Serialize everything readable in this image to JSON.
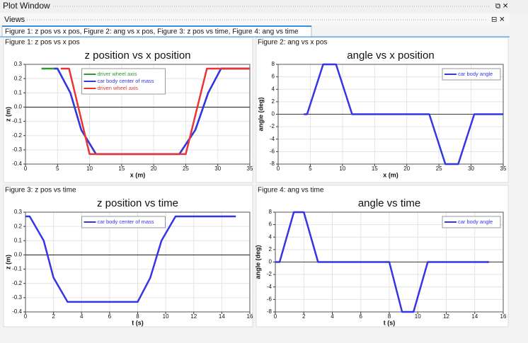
{
  "window": {
    "title": "Plot Window",
    "views": "Views",
    "tab": "Figure 1: z pos vs x pos, Figure 2: ang vs x pos, Figure 3: z pos vs time, Figure 4: ang vs time"
  },
  "chart_data": [
    {
      "type": "line",
      "figure_label": "Figure 1: z pos vs x pos",
      "title": "z position vs x position",
      "x_label": "x (m)",
      "y_label": "z (m)",
      "xlim": [
        0,
        35
      ],
      "xticks": [
        0,
        5,
        10,
        15,
        20,
        25,
        30,
        35
      ],
      "ylim": [
        -0.4,
        0.3
      ],
      "yticks": [
        -0.4,
        -0.3,
        -0.2,
        -0.1,
        {
          "value": 0,
          "label": "0.0"
        },
        0.1,
        0.2,
        0.3
      ],
      "grid": true,
      "legend": "upper center",
      "series": [
        {
          "name": "driver wheel axis",
          "color": "#2e9a2e",
          "x": [
            2.5,
            5,
            7,
            8.7,
            11,
            24,
            26.5,
            28.5,
            30.5,
            35
          ],
          "values": [
            0.27,
            0.27,
            0.1,
            -0.16,
            -0.33,
            -0.33,
            -0.16,
            0.1,
            0.27,
            0.27
          ]
        },
        {
          "name": "car body center of mass",
          "color": "#3535e8",
          "x": [
            4.5,
            5,
            7,
            8.7,
            11,
            24,
            26.5,
            28.5,
            30.5,
            35
          ],
          "values": [
            0.27,
            0.27,
            0.1,
            -0.16,
            -0.33,
            -0.33,
            -0.16,
            0.1,
            0.27,
            0.27
          ]
        },
        {
          "name": "driven wheel axis",
          "color": "#e83535",
          "x": [
            5.5,
            6.8,
            10,
            25,
            28.3,
            35
          ],
          "values": [
            0.27,
            0.27,
            -0.33,
            -0.33,
            0.27,
            0.27
          ]
        }
      ]
    },
    {
      "type": "line",
      "figure_label": "Figure 2: ang vs x pos",
      "title": "angle vs x position",
      "x_label": "x (m)",
      "y_label": "angle (deg)",
      "xlim": [
        0,
        35
      ],
      "xticks": [
        0,
        5,
        10,
        15,
        20,
        25,
        30,
        35
      ],
      "ylim": [
        -8,
        8
      ],
      "yticks": [
        -8,
        -6,
        -4,
        -2,
        0,
        2,
        4,
        6,
        8
      ],
      "grid": true,
      "legend": "upper right",
      "series": [
        {
          "name": "car body angle",
          "color": "#3535e8",
          "x": [
            4,
            4.5,
            7,
            9,
            11.5,
            23.5,
            26,
            28,
            30.5,
            35
          ],
          "values": [
            0,
            0,
            8,
            8,
            0,
            0,
            -8,
            -8,
            0,
            0
          ]
        }
      ]
    },
    {
      "type": "line",
      "figure_label": "Figure 3: z pos vs time",
      "title": "z position vs time",
      "x_label": "t (s)",
      "y_label": "z (m)",
      "xlim": [
        0,
        16
      ],
      "xticks": [
        0,
        2,
        4,
        6,
        8,
        10,
        12,
        14,
        16
      ],
      "ylim": [
        -0.4,
        0.3
      ],
      "yticks": [
        -0.4,
        -0.3,
        -0.2,
        -0.1,
        {
          "value": 0,
          "label": "0.0"
        },
        0.1,
        0.2,
        0.3
      ],
      "grid": true,
      "legend": "upper center",
      "series": [
        {
          "name": "car body center of mass",
          "color": "#3535e8",
          "x": [
            0,
            0.3,
            1.3,
            2,
            3,
            8,
            8.9,
            9.7,
            10.7,
            15
          ],
          "values": [
            0.27,
            0.27,
            0.1,
            -0.16,
            -0.33,
            -0.33,
            -0.16,
            0.1,
            0.27,
            0.27
          ]
        }
      ]
    },
    {
      "type": "line",
      "figure_label": "Figure 4: ang vs time",
      "title": "angle vs time",
      "x_label": "t (s)",
      "y_label": "angle (deg)",
      "xlim": [
        0,
        16
      ],
      "xticks": [
        0,
        2,
        4,
        6,
        8,
        10,
        12,
        14,
        16
      ],
      "ylim": [
        -8,
        8
      ],
      "yticks": [
        -8,
        -6,
        -4,
        -2,
        0,
        2,
        4,
        6,
        8
      ],
      "grid": true,
      "legend": "upper right",
      "series": [
        {
          "name": "car body angle",
          "color": "#3535e8",
          "x": [
            0,
            0.3,
            1.3,
            2,
            3,
            8,
            8.9,
            9.7,
            10.7,
            15
          ],
          "values": [
            0,
            0,
            8,
            8,
            0,
            0,
            -8,
            -8,
            0,
            0
          ]
        }
      ]
    }
  ]
}
